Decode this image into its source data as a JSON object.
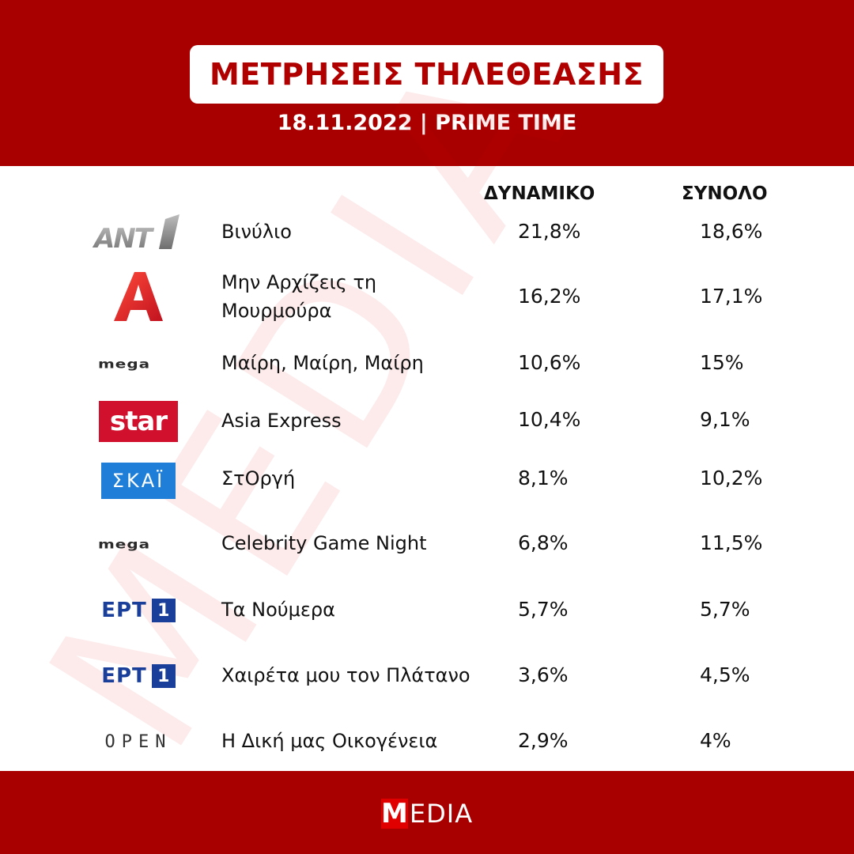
{
  "header": {
    "title": "ΜΕΤΡΗΣΕΙΣ ΤΗΛΕΘΕΑΣΗΣ",
    "subtitle": "18.11.2022 | PRIME TIME"
  },
  "columns": {
    "dynamiko": "ΔΥΝΑΜΙΚΟ",
    "synolo": "ΣΥΝΟΛΟ"
  },
  "rows": [
    {
      "channel": "ANT1",
      "logo_text": "ANT1",
      "show": "Βινύλιο",
      "dynamiko": "21,8%",
      "synolo": "18,6%"
    },
    {
      "channel": "ALPHA",
      "logo_text": "A",
      "show_line1": "Μην Αρχίζεις τη",
      "show_line2": "Μουρμούρα",
      "dynamiko": "16,2%",
      "synolo": "17,1%"
    },
    {
      "channel": "MEGA",
      "logo_text": "mega",
      "show": "Μαίρη, Μαίρη, Μαίρη",
      "dynamiko": "10,6%",
      "synolo": "15%"
    },
    {
      "channel": "STAR",
      "logo_text": "star",
      "show": "Asia Express",
      "dynamiko": "10,4%",
      "synolo": "9,1%"
    },
    {
      "channel": "SKAI",
      "logo_text": "ΣΚΑΪ",
      "show": "ΣτΟργή",
      "dynamiko": "8,1%",
      "synolo": "10,2%"
    },
    {
      "channel": "MEGA",
      "logo_text": "mega",
      "show": "Celebrity Game Night",
      "dynamiko": "6,8%",
      "synolo": "11,5%"
    },
    {
      "channel": "ERT1",
      "logo_text": "ΕΡΤ",
      "logo_num": "1",
      "show": "Τα Νούμερα",
      "dynamiko": "5,7%",
      "synolo": "5,7%"
    },
    {
      "channel": "ERT1",
      "logo_text": "ΕΡΤ",
      "logo_num": "1",
      "show": "Χαιρέτα μου τον Πλάτανο",
      "dynamiko": "3,6%",
      "synolo": "4,5%"
    },
    {
      "channel": "OPEN",
      "logo_text": "OPEN",
      "show": "Η Δική μας Οικογένεια",
      "dynamiko": "2,9%",
      "synolo": "4%"
    }
  ],
  "watermark": "MEDIA",
  "footer": {
    "logo_m": "M",
    "logo_rest": "EDIA"
  },
  "colors": {
    "brand_red": "#a80000",
    "title_red": "#b10000",
    "star_red": "#d0102c",
    "skai_blue": "#1f7fd8",
    "ert_blue": "#1a3f9a"
  }
}
